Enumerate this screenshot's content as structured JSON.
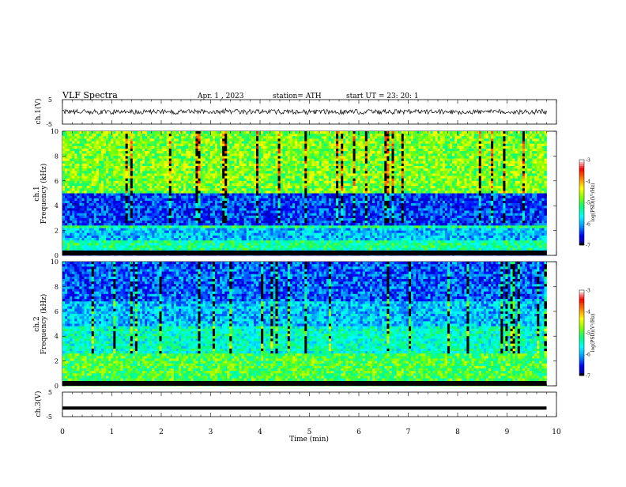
{
  "header": {
    "title": "VLF  Spectra",
    "date": "Apr. 1  , 2023",
    "station": "station= ATH",
    "start_ut": "start  UT  =    23: 20: 1"
  },
  "colors": {
    "waveform": "#000000",
    "black_band": "#000000",
    "colormap": [
      "#000000",
      "#00008b",
      "#0000ff",
      "#0096ff",
      "#00ffff",
      "#00ff7f",
      "#7fff00",
      "#ffff00",
      "#ff7f00",
      "#ff0000",
      "#ffffff"
    ]
  },
  "chart_data": [
    {
      "type": "line",
      "name": "ch1-waveform",
      "ylabel": "ch.1(V)",
      "ylim": [
        -5,
        5
      ],
      "yticks": [
        "5",
        "-5"
      ],
      "xlim": [
        0,
        10
      ],
      "description_level_volts": 0,
      "noise_amplitude_volts": 1
    },
    {
      "type": "heatmap",
      "name": "ch1-spectrogram",
      "ylabel_top": "ch.1",
      "ylabel": "Frequency  (kHz)",
      "ylim": [
        0,
        10
      ],
      "yticks": [
        "0",
        "2",
        "4",
        "6",
        "8",
        "10"
      ],
      "xlim": [
        0,
        9.8
      ],
      "colorbar": {
        "label": "log(PSD)(V²/Hz)",
        "range": [
          -7,
          -3
        ],
        "ticks": [
          "-3",
          "-4",
          "-5",
          "-6",
          "-7"
        ]
      },
      "bands_khz": [
        {
          "from": 5.0,
          "to": 10.0,
          "level": -4.8
        },
        {
          "from": 2.5,
          "to": 5.0,
          "level": -6.4
        },
        {
          "from": 2.2,
          "to": 2.5,
          "level": -5.2
        },
        {
          "from": 1.2,
          "to": 2.2,
          "level": -5.9
        },
        {
          "from": 0.5,
          "to": 1.2,
          "level": -5.3
        },
        {
          "from": 0.0,
          "to": 0.5,
          "level": -6.6
        }
      ]
    },
    {
      "type": "heatmap",
      "name": "ch2-spectrogram",
      "ylabel_top": "ch.2",
      "ylabel": "Frequency  (kHz)",
      "ylim": [
        0,
        10
      ],
      "yticks": [
        "0",
        "2",
        "4",
        "6",
        "8",
        "10"
      ],
      "xlim": [
        0,
        9.8
      ],
      "colorbar": {
        "label": "log(PSD)(V²/Hz)",
        "range": [
          -7,
          -3
        ],
        "ticks": [
          "-3",
          "-4",
          "-5",
          "-6",
          "-7"
        ]
      },
      "bands_khz": [
        {
          "from": 6.8,
          "to": 10.0,
          "level": -6.3
        },
        {
          "from": 4.8,
          "to": 6.8,
          "level": -5.9
        },
        {
          "from": 2.6,
          "to": 4.8,
          "level": -5.5
        },
        {
          "from": 0.0,
          "to": 2.6,
          "level": -5.0
        }
      ]
    },
    {
      "type": "line",
      "name": "ch3-waveform",
      "ylabel": "ch.3(V)",
      "ylim": [
        -5,
        5
      ],
      "yticks": [
        "5",
        "-5"
      ],
      "xlim": [
        0,
        10
      ],
      "xlabel": "Time  (min)",
      "xticks": [
        "0",
        "1",
        "2",
        "3",
        "4",
        "5",
        "6",
        "7",
        "8",
        "9",
        "10"
      ],
      "level_volts": -1.5
    }
  ]
}
